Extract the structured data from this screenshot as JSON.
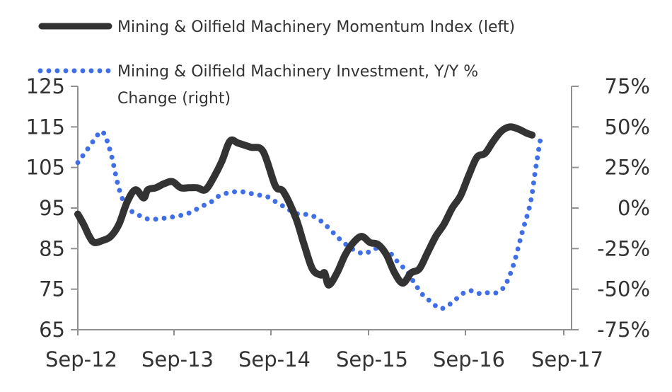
{
  "chart_data": {
    "type": "line",
    "title": "",
    "legend_position": "top-left",
    "grid": false,
    "x_axis": {
      "tick_labels": [
        "Sep-12",
        "Sep-13",
        "Sep-14",
        "Sep-15",
        "Sep-16",
        "Sep-17"
      ],
      "range": [
        0,
        60
      ]
    },
    "y_left": {
      "range": [
        65,
        125
      ],
      "ticks": [
        65,
        75,
        85,
        95,
        105,
        115,
        125
      ],
      "tick_labels": [
        "65",
        "75",
        "85",
        "95",
        "105",
        "115",
        "125"
      ]
    },
    "y_right": {
      "range": [
        -75,
        75
      ],
      "ticks": [
        -75,
        -50,
        -25,
        0,
        25,
        50,
        75
      ],
      "tick_labels": [
        "-75%",
        "-50%",
        "-25%",
        "0%",
        "25%",
        "50%",
        "75%"
      ]
    },
    "series": [
      {
        "name": "Mining & Oilfield Machinery Momentum Index (left)",
        "axis": "left",
        "style": "solid",
        "color": "#333333",
        "points": [
          [
            0,
            93.5
          ],
          [
            0.7,
            91
          ],
          [
            1.4,
            88
          ],
          [
            2,
            86.5
          ],
          [
            3,
            87
          ],
          [
            4,
            88
          ],
          [
            5,
            91
          ],
          [
            6,
            96.5
          ],
          [
            7,
            99.5
          ],
          [
            8,
            97.5
          ],
          [
            8.5,
            99.5
          ],
          [
            9.5,
            100
          ],
          [
            10.5,
            101
          ],
          [
            11.5,
            101.5
          ],
          [
            12.5,
            100
          ],
          [
            13.5,
            100
          ],
          [
            14.5,
            100
          ],
          [
            15.5,
            99.5
          ],
          [
            16.5,
            102.5
          ],
          [
            17.5,
            106.5
          ],
          [
            18.5,
            111.5
          ],
          [
            19.5,
            111
          ],
          [
            21,
            110
          ],
          [
            22.5,
            109
          ],
          [
            24,
            100.5
          ],
          [
            25,
            99
          ],
          [
            26.5,
            92.5
          ],
          [
            27.5,
            86
          ],
          [
            28.5,
            80
          ],
          [
            29.5,
            78.5
          ],
          [
            30,
            79
          ],
          [
            30.5,
            76
          ],
          [
            31.5,
            79
          ],
          [
            32.5,
            83.5
          ],
          [
            33.5,
            86.5
          ],
          [
            34.5,
            88
          ],
          [
            35.5,
            86.5
          ],
          [
            36.5,
            86
          ],
          [
            37.5,
            83.5
          ],
          [
            38.5,
            79
          ],
          [
            39.5,
            76.5
          ],
          [
            40.5,
            79
          ],
          [
            41.5,
            80
          ],
          [
            42.5,
            84
          ],
          [
            43.5,
            88
          ],
          [
            44.5,
            91
          ],
          [
            45.5,
            95
          ],
          [
            46.5,
            98
          ],
          [
            47.5,
            103
          ],
          [
            48.5,
            107.5
          ],
          [
            49.5,
            108.5
          ],
          [
            50.5,
            111.5
          ],
          [
            51.5,
            114
          ],
          [
            52.5,
            115
          ],
          [
            53.5,
            114.5
          ],
          [
            54.5,
            113.5
          ],
          [
            55.2,
            113
          ]
        ]
      },
      {
        "name": "Mining & Oilfield Machinery Investment, Y/Y % Change (right)",
        "axis": "right",
        "style": "dotted",
        "color": "#3f6ee6",
        "points": [
          [
            0,
            28
          ],
          [
            1,
            35
          ],
          [
            2,
            42
          ],
          [
            3,
            47
          ],
          [
            4,
            34
          ],
          [
            5,
            12
          ],
          [
            6,
            0
          ],
          [
            7,
            -3
          ],
          [
            8,
            -6
          ],
          [
            9,
            -7
          ],
          [
            10,
            -6.5
          ],
          [
            11,
            -6
          ],
          [
            12,
            -5
          ],
          [
            13,
            -4
          ],
          [
            14,
            -2
          ],
          [
            15,
            1
          ],
          [
            16,
            3
          ],
          [
            17,
            7
          ],
          [
            18,
            9
          ],
          [
            19,
            10
          ],
          [
            20,
            10
          ],
          [
            21,
            9
          ],
          [
            22,
            8
          ],
          [
            23,
            7
          ],
          [
            24,
            4
          ],
          [
            25,
            1
          ],
          [
            26,
            -2
          ],
          [
            27,
            -4
          ],
          [
            28,
            -4
          ],
          [
            29,
            -6
          ],
          [
            30,
            -10
          ],
          [
            31,
            -15
          ],
          [
            32,
            -20
          ],
          [
            33,
            -24
          ],
          [
            34,
            -27
          ],
          [
            35,
            -28
          ],
          [
            36,
            -25
          ],
          [
            37,
            -26
          ],
          [
            38,
            -28
          ],
          [
            39,
            -34
          ],
          [
            40,
            -39
          ],
          [
            41,
            -47
          ],
          [
            42,
            -54
          ],
          [
            43,
            -58
          ],
          [
            44,
            -62
          ],
          [
            45,
            -60
          ],
          [
            46,
            -56
          ],
          [
            47,
            -52
          ],
          [
            48,
            -51
          ],
          [
            49,
            -53
          ],
          [
            50,
            -52
          ],
          [
            51,
            -52
          ],
          [
            52,
            -47
          ],
          [
            53,
            -34
          ],
          [
            54,
            -15
          ],
          [
            55,
            3
          ],
          [
            55.6,
            23
          ],
          [
            56.2,
            42
          ]
        ]
      }
    ]
  }
}
